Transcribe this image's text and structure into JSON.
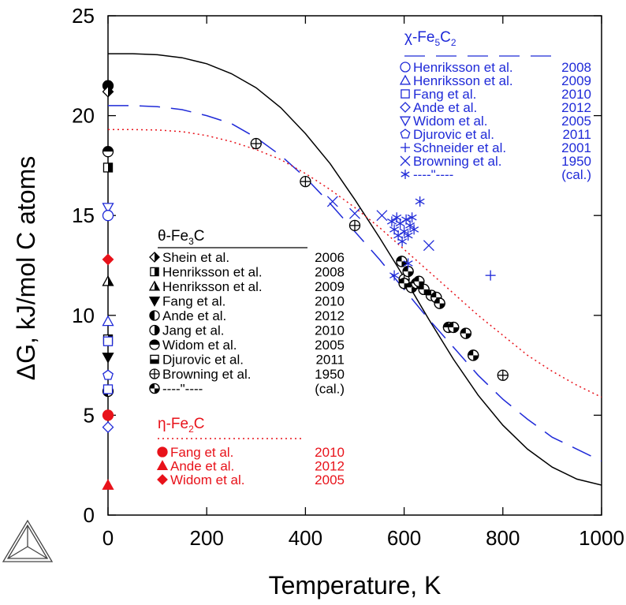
{
  "chart_data": {
    "type": "scatter",
    "xlabel": "Temperature, K",
    "ylabel": "ΔG, kJ/mol C atoms",
    "xlim": [
      0,
      1000
    ],
    "ylim": [
      0,
      25
    ],
    "xticks": [
      0,
      200,
      400,
      600,
      800,
      1000
    ],
    "yticks": [
      0,
      5,
      10,
      15,
      20,
      25
    ],
    "colors": {
      "theta": "#000000",
      "chi": "#1f2ad8",
      "eta": "#e8121a"
    },
    "curves": [
      {
        "phase": "theta",
        "style": "solid",
        "x": [
          0,
          50,
          100,
          150,
          200,
          250,
          300,
          350,
          400,
          450,
          500,
          550,
          600,
          650,
          700,
          750,
          800,
          850,
          900,
          950,
          1000
        ],
        "y": [
          23.1,
          23.1,
          23.05,
          22.9,
          22.6,
          22.1,
          21.4,
          20.4,
          19.1,
          17.6,
          15.8,
          13.9,
          11.9,
          9.8,
          7.8,
          6.0,
          4.5,
          3.3,
          2.4,
          1.8,
          1.5
        ]
      },
      {
        "phase": "chi",
        "style": "dashed",
        "x": [
          0,
          50,
          100,
          150,
          200,
          250,
          300,
          350,
          400,
          450,
          500,
          550,
          600,
          650,
          700,
          750,
          800,
          850,
          900,
          950,
          1000
        ],
        "y": [
          20.5,
          20.5,
          20.45,
          20.3,
          20.0,
          19.6,
          18.9,
          18.0,
          16.9,
          15.6,
          14.2,
          12.8,
          11.3,
          9.8,
          8.4,
          7.0,
          5.8,
          4.8,
          3.9,
          3.3,
          2.7
        ]
      },
      {
        "phase": "eta",
        "style": "dotted",
        "x": [
          0,
          50,
          100,
          150,
          200,
          250,
          300,
          350,
          400,
          450,
          500,
          550,
          600,
          650,
          700,
          750,
          800,
          850,
          900,
          950,
          1000
        ],
        "y": [
          19.3,
          19.3,
          19.28,
          19.2,
          19.0,
          18.7,
          18.3,
          17.8,
          17.1,
          16.3,
          15.4,
          14.4,
          13.3,
          12.2,
          11.1,
          10.0,
          9.0,
          8.0,
          7.2,
          6.5,
          5.9
        ]
      }
    ],
    "legends": [
      {
        "phase": "theta",
        "title": "θ-Fe3C",
        "title_main": "θ-Fe",
        "title_sub1": "3",
        "title_tail": "C",
        "entries": [
          {
            "label": "Shein et al.",
            "year": "2006",
            "marker": "diamond-half"
          },
          {
            "label": "Henriksson et al.",
            "year": "2008",
            "marker": "square-half"
          },
          {
            "label": "Henriksson et al.",
            "year": "2009",
            "marker": "triangle-half"
          },
          {
            "label": "Fang et al.",
            "year": "2010",
            "marker": "triangle-down"
          },
          {
            "label": "Ande et al.",
            "year": "2012",
            "marker": "circle-left"
          },
          {
            "label": "Jang et al.",
            "year": "2010",
            "marker": "circle-right"
          },
          {
            "label": "Widom et al.",
            "year": "2005",
            "marker": "circle-top"
          },
          {
            "label": "Djurovic et al.",
            "year": "2011",
            "marker": "square-bottom"
          },
          {
            "label": "Browning et al.",
            "year": "1950",
            "marker": "circle-plus"
          },
          {
            "label": "----\"----",
            "year": "(cal.)",
            "marker": "circle-quarter"
          }
        ]
      },
      {
        "phase": "chi",
        "title": "χ-Fe5C2",
        "title_main": "χ-Fe",
        "title_sub1": "5",
        "title_mid": "C",
        "title_sub2": "2",
        "entries": [
          {
            "label": "Henriksson et al.",
            "year": "2008",
            "marker": "circle-open"
          },
          {
            "label": "Henriksson et al.",
            "year": "2009",
            "marker": "triangle-open"
          },
          {
            "label": "Fang et al.",
            "year": "2010",
            "marker": "square-open"
          },
          {
            "label": "Ande et al.",
            "year": "2012",
            "marker": "diamond-open"
          },
          {
            "label": "Widom et al.",
            "year": "2005",
            "marker": "triangle-down-open"
          },
          {
            "label": "Djurovic et al.",
            "year": "2011",
            "marker": "pentagon-open"
          },
          {
            "label": "Schneider et al.",
            "year": "2001",
            "marker": "plus"
          },
          {
            "label": "Browning et al.",
            "year": "1950",
            "marker": "cross"
          },
          {
            "label": "----\"----",
            "year": "(cal.)",
            "marker": "asterisk"
          }
        ]
      },
      {
        "phase": "eta",
        "title": "η-Fe2C",
        "title_main": "η-Fe",
        "title_sub1": "2",
        "title_tail": "C",
        "entries": [
          {
            "label": "Fang et al.",
            "year": "2010",
            "marker": "circle-filled"
          },
          {
            "label": "Ande et al.",
            "year": "2012",
            "marker": "triangle-filled"
          },
          {
            "label": "Widom et al.",
            "year": "2005",
            "marker": "diamond-filled"
          }
        ]
      }
    ],
    "points": [
      {
        "phase": "theta",
        "marker": "circle-filled",
        "x": 0,
        "y": 21.5
      },
      {
        "phase": "theta",
        "marker": "diamond-half",
        "x": 0,
        "y": 21.2
      },
      {
        "phase": "theta",
        "marker": "circle-top",
        "x": 0,
        "y": 18.2
      },
      {
        "phase": "theta",
        "marker": "square-half",
        "x": 0,
        "y": 17.4
      },
      {
        "phase": "theta",
        "marker": "triangle-half",
        "x": 0,
        "y": 11.7
      },
      {
        "phase": "theta",
        "marker": "square-half",
        "x": 0,
        "y": 8.8
      },
      {
        "phase": "theta",
        "marker": "triangle-down",
        "x": 0,
        "y": 7.9
      },
      {
        "phase": "theta",
        "marker": "circle-left",
        "x": 0,
        "y": 6.2
      },
      {
        "phase": "chi",
        "marker": "triangle-down-open",
        "x": 0,
        "y": 15.4
      },
      {
        "phase": "chi",
        "marker": "circle-open",
        "x": 0,
        "y": 15.0
      },
      {
        "phase": "chi",
        "marker": "triangle-open",
        "x": 0,
        "y": 9.7
      },
      {
        "phase": "chi",
        "marker": "square-open",
        "x": 0,
        "y": 8.7
      },
      {
        "phase": "chi",
        "marker": "pentagon-open",
        "x": 0,
        "y": 7.0
      },
      {
        "phase": "chi",
        "marker": "square-open",
        "x": 0,
        "y": 6.3
      },
      {
        "phase": "chi",
        "marker": "diamond-open",
        "x": 0,
        "y": 4.4
      },
      {
        "phase": "eta",
        "marker": "diamond-filled",
        "x": 0,
        "y": 12.8
      },
      {
        "phase": "eta",
        "marker": "circle-filled",
        "x": 0,
        "y": 5.0
      },
      {
        "phase": "eta",
        "marker": "triangle-filled",
        "x": 0,
        "y": 1.5
      },
      {
        "phase": "theta",
        "marker": "circle-plus",
        "x": 300,
        "y": 18.6
      },
      {
        "phase": "theta",
        "marker": "circle-plus",
        "x": 400,
        "y": 16.7
      },
      {
        "phase": "theta",
        "marker": "circle-plus",
        "x": 500,
        "y": 14.5
      },
      {
        "phase": "theta",
        "marker": "circle-plus",
        "x": 600,
        "y": 11.8
      },
      {
        "phase": "theta",
        "marker": "circle-plus",
        "x": 800,
        "y": 7.0
      },
      {
        "phase": "theta",
        "marker": "circle-quarter",
        "x": 595,
        "y": 12.7
      },
      {
        "phase": "theta",
        "marker": "circle-quarter",
        "x": 600,
        "y": 11.6
      },
      {
        "phase": "theta",
        "marker": "circle-quarter",
        "x": 608,
        "y": 12.2
      },
      {
        "phase": "theta",
        "marker": "circle-quarter",
        "x": 615,
        "y": 11.4
      },
      {
        "phase": "theta",
        "marker": "circle-quarter",
        "x": 625,
        "y": 11.6
      },
      {
        "phase": "theta",
        "marker": "circle-quarter",
        "x": 630,
        "y": 11.7
      },
      {
        "phase": "theta",
        "marker": "circle-quarter",
        "x": 640,
        "y": 11.3
      },
      {
        "phase": "theta",
        "marker": "circle-quarter",
        "x": 655,
        "y": 11.0
      },
      {
        "phase": "theta",
        "marker": "circle-quarter",
        "x": 665,
        "y": 10.9
      },
      {
        "phase": "theta",
        "marker": "circle-quarter",
        "x": 672,
        "y": 10.6
      },
      {
        "phase": "theta",
        "marker": "circle-quarter",
        "x": 690,
        "y": 9.4
      },
      {
        "phase": "theta",
        "marker": "circle-quarter",
        "x": 700,
        "y": 9.4
      },
      {
        "phase": "theta",
        "marker": "circle-quarter",
        "x": 725,
        "y": 9.1
      },
      {
        "phase": "theta",
        "marker": "circle-quarter",
        "x": 740,
        "y": 8.0
      },
      {
        "phase": "chi",
        "marker": "cross",
        "x": 455,
        "y": 15.7
      },
      {
        "phase": "chi",
        "marker": "cross",
        "x": 500,
        "y": 15.1
      },
      {
        "phase": "chi",
        "marker": "cross",
        "x": 555,
        "y": 15.0
      },
      {
        "phase": "chi",
        "marker": "cross",
        "x": 650,
        "y": 13.5
      },
      {
        "phase": "chi",
        "marker": "asterisk",
        "x": 575,
        "y": 14.7
      },
      {
        "phase": "chi",
        "marker": "asterisk",
        "x": 580,
        "y": 14.3
      },
      {
        "phase": "chi",
        "marker": "asterisk",
        "x": 585,
        "y": 14.9
      },
      {
        "phase": "chi",
        "marker": "asterisk",
        "x": 588,
        "y": 14.0
      },
      {
        "phase": "chi",
        "marker": "asterisk",
        "x": 592,
        "y": 14.6
      },
      {
        "phase": "chi",
        "marker": "asterisk",
        "x": 596,
        "y": 13.7
      },
      {
        "phase": "chi",
        "marker": "asterisk",
        "x": 600,
        "y": 14.2
      },
      {
        "phase": "chi",
        "marker": "asterisk",
        "x": 604,
        "y": 14.8
      },
      {
        "phase": "chi",
        "marker": "asterisk",
        "x": 608,
        "y": 14.0
      },
      {
        "phase": "chi",
        "marker": "asterisk",
        "x": 612,
        "y": 14.5
      },
      {
        "phase": "chi",
        "marker": "asterisk",
        "x": 616,
        "y": 14.9
      },
      {
        "phase": "chi",
        "marker": "asterisk",
        "x": 620,
        "y": 14.3
      },
      {
        "phase": "chi",
        "marker": "asterisk",
        "x": 632,
        "y": 15.7
      },
      {
        "phase": "chi",
        "marker": "asterisk",
        "x": 580,
        "y": 12.0
      },
      {
        "phase": "chi",
        "marker": "asterisk",
        "x": 608,
        "y": 12.6
      },
      {
        "phase": "chi",
        "marker": "plus",
        "x": 775,
        "y": 12.0
      }
    ]
  }
}
